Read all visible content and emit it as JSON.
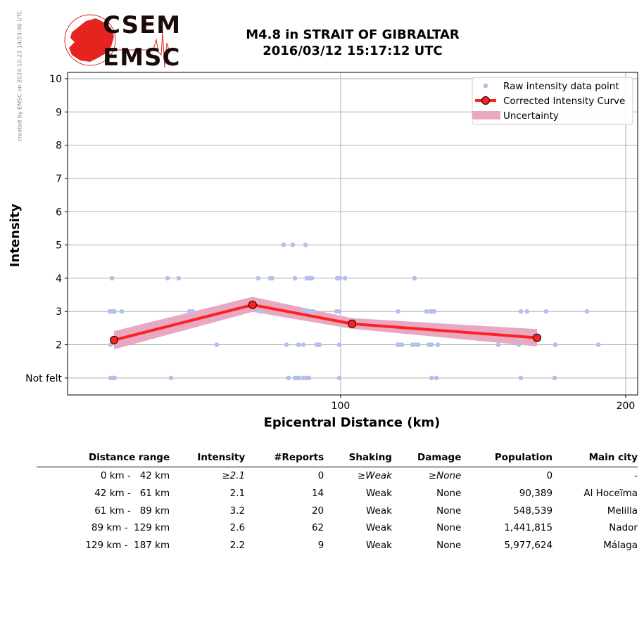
{
  "side_note": "created by EMSC on 2024-10-23 14:53:40 UTC",
  "logo": {
    "line1": "CSEM",
    "line2": "EMSC"
  },
  "title": {
    "line1": "M4.8 in STRAIT OF GIBRALTAR",
    "line2": "2016/03/12 15:17:12 UTC"
  },
  "chart_data": {
    "type": "scatter",
    "xlabel": "Epicentral Distance (km)",
    "ylabel": "Intensity",
    "xlim": [
      4.2,
      204.2
    ],
    "ylim": [
      0.49,
      10.19
    ],
    "x_ticks": [
      {
        "value": 100,
        "label": "100"
      },
      {
        "value": 200,
        "label": "200"
      }
    ],
    "y_ticks": [
      {
        "value": 1,
        "label": "Not felt"
      },
      {
        "value": 2,
        "label": "2"
      },
      {
        "value": 3,
        "label": "3"
      },
      {
        "value": 4,
        "label": "4"
      },
      {
        "value": 5,
        "label": "5"
      },
      {
        "value": 6,
        "label": "6"
      },
      {
        "value": 7,
        "label": "7"
      },
      {
        "value": 8,
        "label": "8"
      },
      {
        "value": 9,
        "label": "9"
      },
      {
        "value": 10,
        "label": "10"
      }
    ],
    "grid": true,
    "legend_position": "top-right",
    "legend": [
      "Raw intensity data point",
      "Corrected Intensity Curve",
      "Uncertainty"
    ],
    "colors": {
      "raw": "#b3c0ea",
      "curve": "#ff2020",
      "band": "#e8a8c2",
      "grid": "#b0b0b0"
    },
    "raw_points": [
      [
        19.8,
        4
      ],
      [
        39.3,
        4
      ],
      [
        43.2,
        4
      ],
      [
        71.1,
        4
      ],
      [
        75.3,
        4
      ],
      [
        76.0,
        4
      ],
      [
        84.0,
        4
      ],
      [
        88.1,
        4
      ],
      [
        88.9,
        4
      ],
      [
        89.9,
        4
      ],
      [
        98.8,
        4
      ],
      [
        99.8,
        4
      ],
      [
        101.5,
        4
      ],
      [
        125.9,
        4
      ],
      [
        80.0,
        5
      ],
      [
        83.2,
        5
      ],
      [
        87.7,
        5
      ],
      [
        19.0,
        3
      ],
      [
        19.8,
        3
      ],
      [
        20.7,
        3
      ],
      [
        23.2,
        3
      ],
      [
        46.9,
        3
      ],
      [
        47.4,
        3
      ],
      [
        48.1,
        3
      ],
      [
        71.9,
        3
      ],
      [
        72.3,
        3
      ],
      [
        86.9,
        3
      ],
      [
        88.1,
        3
      ],
      [
        89.4,
        3
      ],
      [
        90.4,
        3
      ],
      [
        98.5,
        3
      ],
      [
        99.5,
        3
      ],
      [
        120.2,
        3
      ],
      [
        130.1,
        3
      ],
      [
        131.4,
        3
      ],
      [
        132.1,
        3
      ],
      [
        132.8,
        3
      ],
      [
        163.2,
        3
      ],
      [
        165.4,
        3
      ],
      [
        172.1,
        3
      ],
      [
        186.4,
        3
      ],
      [
        19.3,
        2
      ],
      [
        56.5,
        2
      ],
      [
        81.0,
        2
      ],
      [
        85.2,
        2
      ],
      [
        86.9,
        2
      ],
      [
        91.6,
        2
      ],
      [
        92.6,
        2
      ],
      [
        99.5,
        2
      ],
      [
        120.0,
        2
      ],
      [
        120.7,
        2
      ],
      [
        121.5,
        2
      ],
      [
        125.2,
        2
      ],
      [
        126.4,
        2
      ],
      [
        127.2,
        2
      ],
      [
        130.9,
        2
      ],
      [
        131.9,
        2
      ],
      [
        134.1,
        2
      ],
      [
        155.3,
        2
      ],
      [
        162.5,
        2
      ],
      [
        175.3,
        2
      ],
      [
        190.4,
        2
      ],
      [
        19.3,
        1
      ],
      [
        20.0,
        1
      ],
      [
        20.7,
        1
      ],
      [
        40.5,
        1
      ],
      [
        81.7,
        1
      ],
      [
        84.0,
        1
      ],
      [
        84.7,
        1
      ],
      [
        85.4,
        1
      ],
      [
        86.9,
        1
      ],
      [
        88.1,
        1
      ],
      [
        88.9,
        1
      ],
      [
        99.5,
        1
      ],
      [
        131.9,
        1
      ],
      [
        133.6,
        1
      ],
      [
        163.2,
        1
      ],
      [
        175.1,
        1
      ]
    ],
    "curve": {
      "x": [
        20.5,
        69.1,
        104.0,
        168.9
      ],
      "y": [
        2.14,
        3.2,
        2.63,
        2.21
      ]
    },
    "uncertainty": {
      "x": [
        20.5,
        69.1,
        104.0,
        168.9
      ],
      "upper": [
        2.41,
        3.44,
        2.8,
        2.47
      ],
      "lower": [
        1.86,
        2.99,
        2.48,
        1.95
      ]
    }
  },
  "table": {
    "headers": [
      "Distance range",
      "Intensity",
      "#Reports",
      "Shaking",
      "Damage",
      "Population",
      "Main city"
    ],
    "rows": [
      {
        "range": "0 km -   42 km",
        "intensity": "≥2.1",
        "reports": "0",
        "shaking": "≥Weak",
        "damage": "≥None",
        "population": "0",
        "city": "-"
      },
      {
        "range": "42 km -   61 km",
        "intensity": "2.1",
        "reports": "14",
        "shaking": "Weak",
        "damage": "None",
        "population": "90,389",
        "city": "Al Hoceïma"
      },
      {
        "range": "61 km -   89 km",
        "intensity": "3.2",
        "reports": "20",
        "shaking": "Weak",
        "damage": "None",
        "population": "548,539",
        "city": "Melilla"
      },
      {
        "range": "89 km -  129 km",
        "intensity": "2.6",
        "reports": "62",
        "shaking": "Weak",
        "damage": "None",
        "population": "1,441,815",
        "city": "Nador"
      },
      {
        "range": "129 km -  187 km",
        "intensity": "2.2",
        "reports": "9",
        "shaking": "Weak",
        "damage": "None",
        "population": "5,977,624",
        "city": "Málaga"
      }
    ]
  }
}
